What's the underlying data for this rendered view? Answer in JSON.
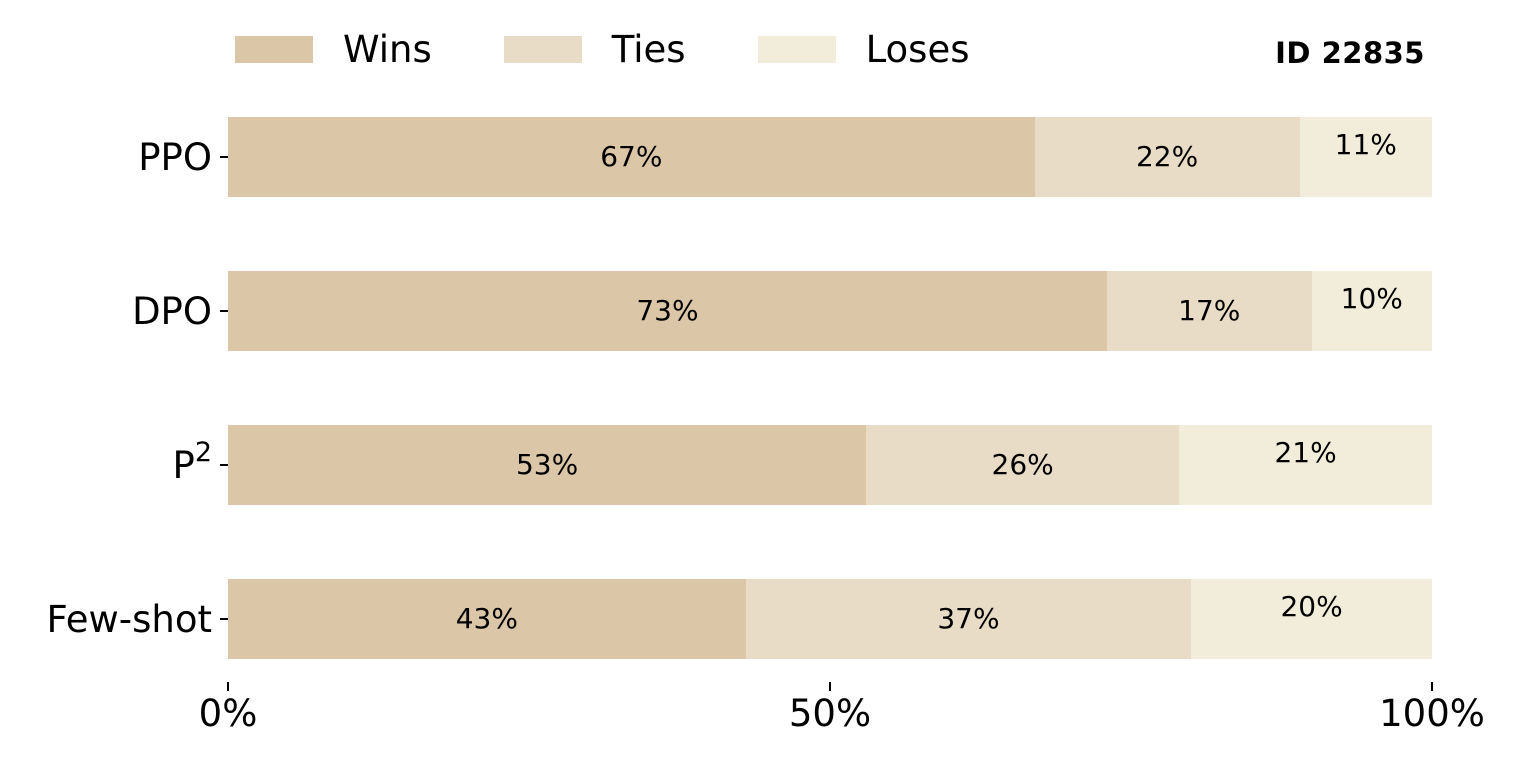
{
  "meta": {
    "id_label": "ID 22835"
  },
  "legend": {
    "items": [
      {
        "label": "Wins",
        "color": "#dbc6a8"
      },
      {
        "label": "Ties",
        "color": "#e8dcc6"
      },
      {
        "label": "Loses",
        "color": "#f2ecdb"
      }
    ]
  },
  "chart_data": {
    "type": "bar",
    "orientation": "horizontal",
    "stacked": true,
    "title": "",
    "xlabel": "",
    "ylabel": "",
    "categories": [
      "PPO",
      "DPO",
      "P^2",
      "Few-shot"
    ],
    "series": [
      {
        "name": "Wins",
        "color": "#dbc6a8",
        "values": [
          67,
          73,
          53,
          43
        ]
      },
      {
        "name": "Ties",
        "color": "#e8dcc6",
        "values": [
          22,
          17,
          26,
          37
        ]
      },
      {
        "name": "Loses",
        "color": "#f2ecdb",
        "values": [
          11,
          10,
          21,
          20
        ]
      }
    ],
    "value_suffix": "%",
    "xlim": [
      0,
      100
    ],
    "x_ticks": [
      {
        "value": 0,
        "label": "0%"
      },
      {
        "value": 50,
        "label": "50%"
      },
      {
        "value": 100,
        "label": "100%"
      }
    ],
    "legend_position": "top",
    "grid": false,
    "background_color": "#ffffff",
    "text_color": "#000000"
  }
}
